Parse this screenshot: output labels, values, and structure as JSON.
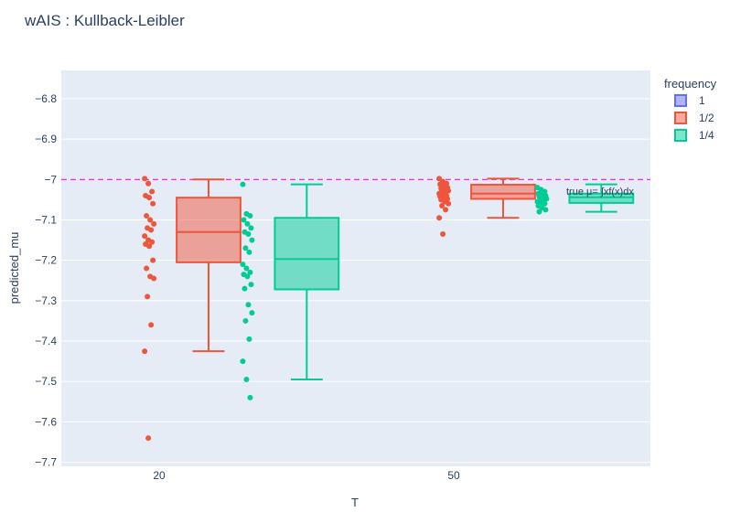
{
  "chart_data": {
    "type": "box",
    "title": "wAIS : Kullback-Leibler",
    "xlabel": "T",
    "ylabel": "predicted_mu",
    "categories": [
      "20",
      "50"
    ],
    "yticks": [
      "−6.8",
      "−6.9",
      "−7",
      "−7.1",
      "−7.2",
      "−7.3",
      "−7.4",
      "−7.5",
      "−7.6",
      "−7.7"
    ],
    "yrange": [
      -7.71,
      -6.73
    ],
    "legend": {
      "title": "frequency",
      "position": "right"
    },
    "annotation": "true μ= ∫xf(x)dx",
    "reference_line": {
      "value": -7.0,
      "color": "#ff00ff",
      "style": "dashed"
    },
    "series": [
      {
        "name": "1",
        "color": "#636efa",
        "boxes": []
      },
      {
        "name": "1/2",
        "color": "#ef553b",
        "boxes": [
          {
            "category": "20",
            "min": -7.425,
            "q1": -7.205,
            "median": -7.13,
            "q3": -7.045,
            "max": -7.0,
            "points": [
              -6.998,
              -7.01,
              -7.03,
              -7.04,
              -7.045,
              -7.06,
              -7.09,
              -7.1,
              -7.11,
              -7.12,
              -7.125,
              -7.14,
              -7.15,
              -7.155,
              -7.16,
              -7.165,
              -7.2,
              -7.22,
              -7.24,
              -7.245,
              -7.29,
              -7.36,
              -7.425,
              -7.64
            ]
          },
          {
            "category": "50",
            "min": -7.095,
            "q1": -7.048,
            "median": -7.035,
            "q3": -7.013,
            "max": -6.998,
            "points": [
              -6.998,
              -7.005,
              -7.01,
              -7.012,
              -7.015,
              -7.02,
              -7.022,
              -7.025,
              -7.028,
              -7.03,
              -7.032,
              -7.035,
              -7.037,
              -7.04,
              -7.042,
              -7.045,
              -7.048,
              -7.05,
              -7.055,
              -7.06,
              -7.065,
              -7.075,
              -7.095,
              -7.135
            ]
          }
        ]
      },
      {
        "name": "1/4",
        "color": "#00cc96",
        "boxes": [
          {
            "category": "20",
            "min": -7.495,
            "q1": -7.272,
            "median": -7.197,
            "q3": -7.095,
            "max": -7.012,
            "points": [
              -7.012,
              -7.085,
              -7.09,
              -7.1,
              -7.11,
              -7.12,
              -7.13,
              -7.135,
              -7.15,
              -7.17,
              -7.18,
              -7.21,
              -7.22,
              -7.23,
              -7.235,
              -7.24,
              -7.26,
              -7.27,
              -7.31,
              -7.33,
              -7.35,
              -7.395,
              -7.45,
              -7.495,
              -7.54
            ]
          },
          {
            "category": "50",
            "min": -7.08,
            "q1": -7.058,
            "median": -7.044,
            "q3": -7.035,
            "max": -7.012,
            "points": [
              -7.02,
              -7.025,
              -7.03,
              -7.035,
              -7.038,
              -7.04,
              -7.042,
              -7.045,
              -7.048,
              -7.05,
              -7.052,
              -7.055,
              -7.058,
              -7.06,
              -7.065,
              -7.07,
              -7.075,
              -7.08
            ]
          }
        ]
      }
    ]
  }
}
